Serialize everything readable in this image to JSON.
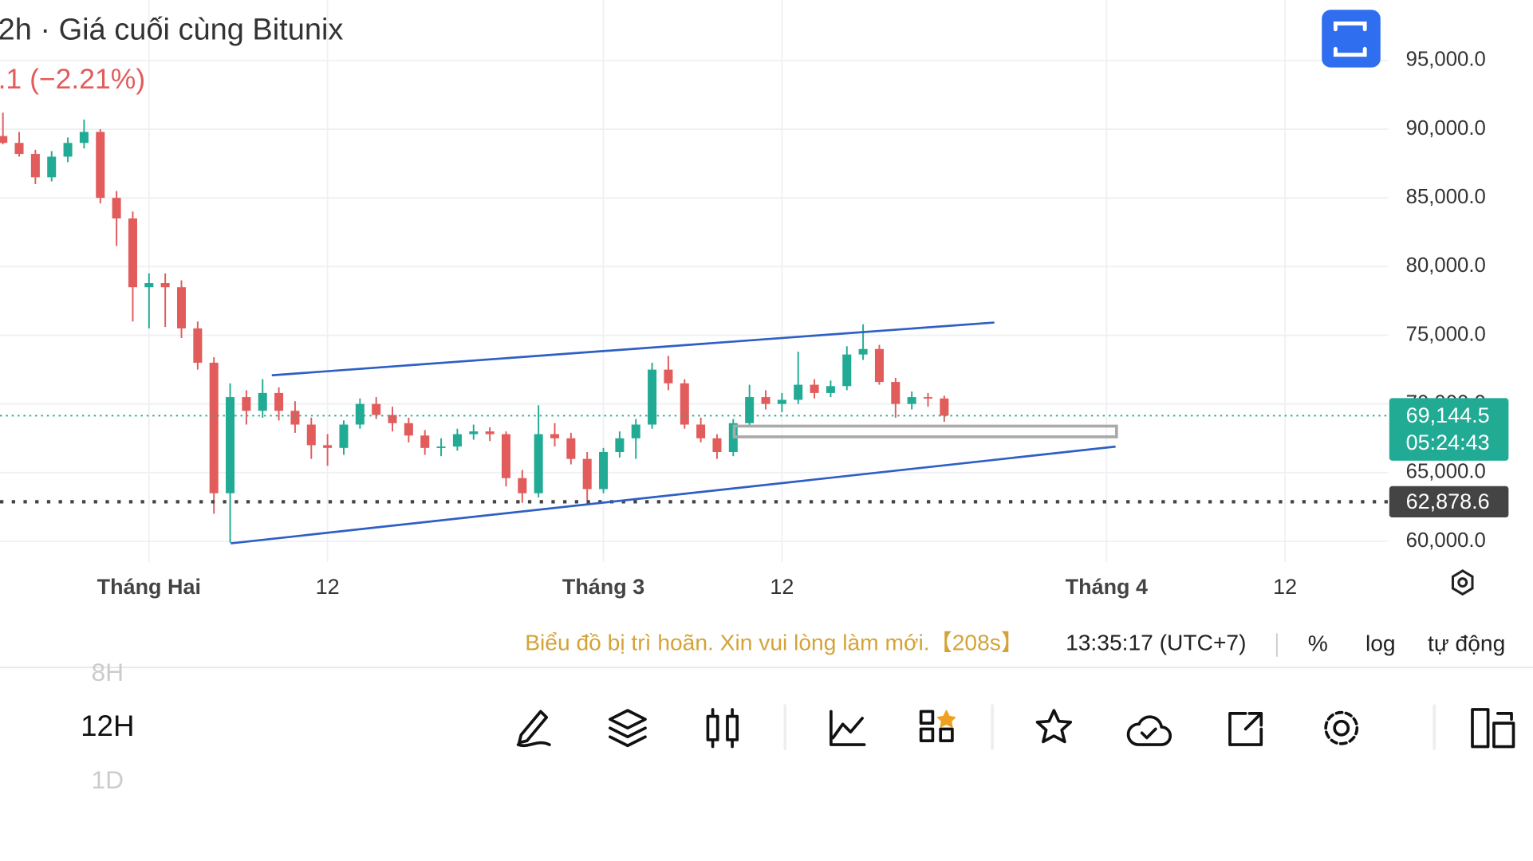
{
  "chart_data": {
    "type": "candlestick",
    "title": "2h · Giá cuối cùng Bitunix",
    "subtitle": ".1 (−2.21%)",
    "x": [
      "01-23",
      "01-24",
      "01-25",
      "01-26",
      "01-27",
      "01-28",
      "01-29",
      "01-30",
      "01-31",
      "02-01",
      "02-02",
      "02-03",
      "02-04",
      "02-05",
      "02-06",
      "02-07",
      "02-08",
      "02-09",
      "02-10",
      "02-11",
      "02-12",
      "02-13",
      "02-14",
      "02-15",
      "02-16",
      "02-17",
      "02-18",
      "02-19",
      "02-20",
      "02-21",
      "02-22",
      "02-23",
      "02-24",
      "02-25",
      "02-26",
      "02-27",
      "02-28",
      "03-01",
      "03-02",
      "03-03",
      "03-04",
      "03-05",
      "03-06",
      "03-07",
      "03-08",
      "03-09",
      "03-10",
      "03-11",
      "03-12",
      "03-13",
      "03-14",
      "03-15",
      "03-16",
      "03-17",
      "03-18",
      "03-19",
      "03-20",
      "03-21",
      "03-22"
    ],
    "open": [
      89500,
      89000,
      88200,
      86500,
      88000,
      89000,
      89800,
      85000,
      83500,
      78500,
      78800,
      78500,
      75500,
      73000,
      63500,
      70500,
      69500,
      70800,
      69500,
      68500,
      67000,
      66800,
      68500,
      70000,
      69200,
      68600,
      67700,
      66800,
      66900,
      67800,
      68000,
      67800,
      64600,
      63500,
      67800,
      67500,
      66000,
      63800,
      66500,
      67500,
      68500,
      72500,
      71500,
      68500,
      67500,
      66500,
      68600,
      70500,
      70000,
      70300,
      71400,
      70800,
      71300,
      73600,
      74000,
      71600,
      70000,
      70500,
      70400
    ],
    "high": [
      91200,
      89800,
      88500,
      88400,
      89400,
      90700,
      90000,
      85500,
      84000,
      79500,
      79500,
      79000,
      76000,
      73400,
      71500,
      71000,
      71800,
      71200,
      70200,
      69000,
      67800,
      68800,
      70400,
      70500,
      69800,
      69000,
      68100,
      67500,
      68200,
      68500,
      68300,
      68000,
      65200,
      69900,
      68600,
      67900,
      66500,
      66800,
      68000,
      68900,
      73000,
      73500,
      71800,
      69000,
      67800,
      68900,
      71400,
      71000,
      70800,
      73800,
      71800,
      71700,
      74200,
      75800,
      74300,
      71900,
      70900,
      70800,
      70600
    ],
    "low": [
      88900,
      88000,
      86000,
      86200,
      87600,
      88600,
      84600,
      81500,
      76000,
      75500,
      75600,
      74800,
      72500,
      62000,
      59900,
      68500,
      69000,
      68800,
      67900,
      66000,
      65500,
      66300,
      68200,
      68900,
      68000,
      67200,
      66300,
      66200,
      66600,
      67400,
      67300,
      64000,
      62800,
      63200,
      66900,
      65600,
      63000,
      63500,
      66100,
      66000,
      68200,
      71000,
      68200,
      67200,
      66000,
      66200,
      68300,
      69600,
      69400,
      70000,
      70400,
      70500,
      71000,
      73200,
      71400,
      69000,
      69600,
      69800,
      68700
    ],
    "close": [
      89000,
      88200,
      86500,
      88000,
      89000,
      89800,
      85000,
      83500,
      78500,
      78800,
      78500,
      75500,
      73000,
      63500,
      70500,
      69500,
      70800,
      69500,
      68500,
      67000,
      66800,
      68500,
      70000,
      69200,
      68600,
      67700,
      66800,
      66900,
      67800,
      68000,
      67800,
      64600,
      63500,
      67800,
      67500,
      66000,
      63800,
      66500,
      67500,
      68500,
      72500,
      71500,
      68500,
      67500,
      66500,
      68600,
      70500,
      70000,
      70300,
      71400,
      70800,
      71300,
      73600,
      74000,
      71600,
      70000,
      70500,
      70400,
      69144.5
    ],
    "up_color": "#22ab94",
    "down_color": "#e25c5c",
    "xlim": [
      "01-23",
      "04-17"
    ],
    "xticks": [
      {
        "value": "02-01",
        "label": "Tháng Hai"
      },
      {
        "value": "02-12",
        "label": "12"
      },
      {
        "value": "03-01",
        "label": "Tháng 3"
      },
      {
        "value": "03-12",
        "label": "12"
      },
      {
        "value": "04-01",
        "label": "Tháng 4"
      },
      {
        "value": "04-12",
        "label": "12"
      }
    ],
    "ylim": [
      58500,
      99400
    ],
    "yticks": [
      {
        "value": 60000,
        "label": "60,000.0"
      },
      {
        "value": 65000,
        "label": "65,000.0"
      },
      {
        "value": 70000,
        "label": "70,000.0"
      },
      {
        "value": 75000,
        "label": "75,000.0"
      },
      {
        "value": 80000,
        "label": "80,000.0"
      },
      {
        "value": 85000,
        "label": "85,000.0"
      },
      {
        "value": 90000,
        "label": "90,000.0"
      },
      {
        "value": 95000,
        "label": "95,000.0"
      }
    ],
    "grid": true,
    "last_price": {
      "value": 69144.5,
      "label": "69,144.5",
      "color": "#22ab94"
    },
    "countdown": "05:24:43",
    "reference_price": {
      "value": 62878.6,
      "label": "62,878.6",
      "color": "#444"
    }
  },
  "status_bar": {
    "notice": "Biểu đồ bị trì hoãn. Xin vui lòng làm mới.【208s】",
    "time": "13:35:17 (UTC+7)",
    "options": [
      "%",
      "log",
      "tự động"
    ]
  },
  "toolbar": {
    "intervals": [
      "8H",
      "12H",
      "1D"
    ]
  }
}
